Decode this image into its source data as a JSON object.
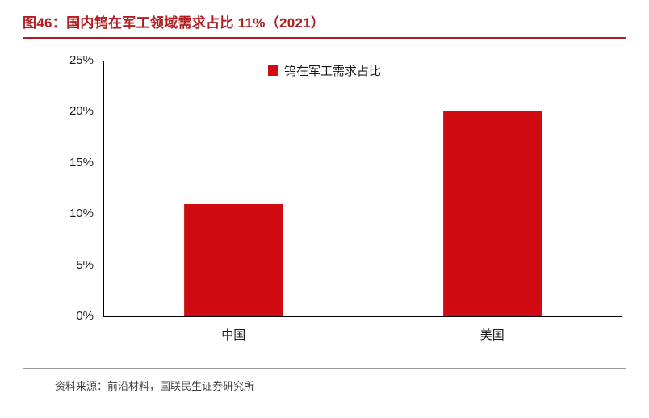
{
  "title": "图46：国内钨在军工领域需求占比 11%（2021）",
  "source": "资料来源：前沿材料，国联民生证券研究所",
  "colors": {
    "title": "#b01e23",
    "bar": "#d00b11",
    "divider": "#9b9b9b",
    "axis": "#000000",
    "tick_text": "#1a1a1a",
    "source_text": "#3f3f3f"
  },
  "chart_data": {
    "type": "bar",
    "title": "图46：国内钨在军工领域需求占比 11%（2021）",
    "categories": [
      "中国",
      "美国"
    ],
    "values": [
      11,
      20
    ],
    "series_name": "钨在军工需求占比",
    "xlabel": "",
    "ylabel": "",
    "ylim": [
      0,
      25
    ],
    "ytick_step": 5,
    "ytick_labels": [
      "0%",
      "5%",
      "10%",
      "15%",
      "20%",
      "25%"
    ],
    "legend_position": "top-center",
    "grid": false
  }
}
